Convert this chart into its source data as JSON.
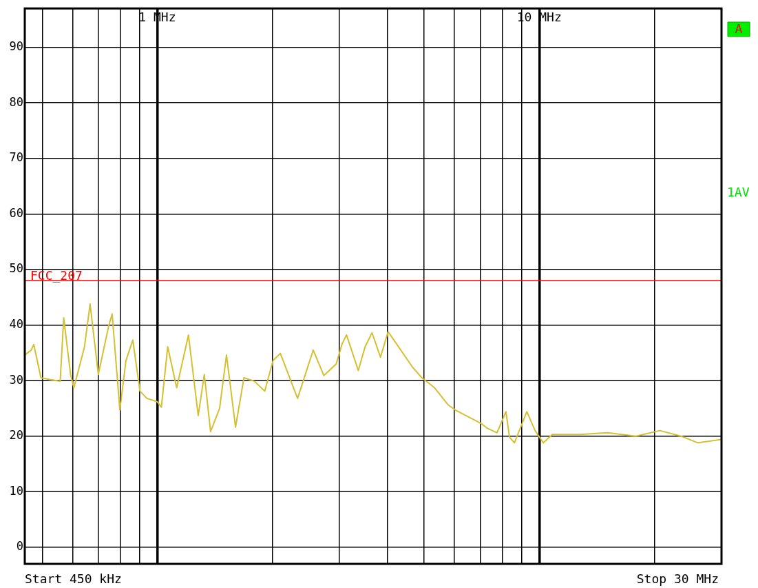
{
  "chart_data": {
    "type": "line",
    "log": "x",
    "grid": true,
    "legend": false,
    "marker": "none",
    "line_style": "solid",
    "xlim": [
      0.45,
      30
    ],
    "ylim": [
      -3,
      97
    ],
    "xticks": [
      {
        "value": 0.5,
        "label": null
      },
      {
        "value": 0.6,
        "label": null
      },
      {
        "value": 0.7,
        "label": null
      },
      {
        "value": 0.8,
        "label": null
      },
      {
        "value": 0.9,
        "label": null
      },
      {
        "value": 1,
        "label": "1 MHz"
      },
      {
        "value": 2,
        "label": null
      },
      {
        "value": 3,
        "label": null
      },
      {
        "value": 4,
        "label": null
      },
      {
        "value": 5,
        "label": null
      },
      {
        "value": 6,
        "label": null
      },
      {
        "value": 7,
        "label": null
      },
      {
        "value": 8,
        "label": null
      },
      {
        "value": 9,
        "label": null
      },
      {
        "value": 10,
        "label": "10 MHz"
      },
      {
        "value": 20,
        "label": null
      }
    ],
    "yticks": [
      0,
      10,
      20,
      30,
      40,
      50,
      60,
      70,
      80,
      90
    ],
    "ref_lines": [
      {
        "axis": "y",
        "value": 48,
        "label": "FCC_207",
        "color": "#ff0000"
      }
    ],
    "annotations": [
      "Start 450 kHz",
      "Stop 30 MHz",
      "1AV",
      "A"
    ],
    "x": [
      0.45,
      0.468,
      0.475,
      0.496,
      0.523,
      0.557,
      0.569,
      0.593,
      0.605,
      0.645,
      0.667,
      0.701,
      0.746,
      0.762,
      0.798,
      0.828,
      0.863,
      0.901,
      0.939,
      1.0,
      1.025,
      1.065,
      1.124,
      1.207,
      1.28,
      1.328,
      1.379,
      1.456,
      1.518,
      1.603,
      1.686,
      1.795,
      1.911,
      2.01,
      2.1,
      2.33,
      2.56,
      2.73,
      2.94,
      3.05,
      3.13,
      3.36,
      3.5,
      3.65,
      3.84,
      4.02,
      4.28,
      4.66,
      4.93,
      5.32,
      5.78,
      6.03,
      6.56,
      7.07,
      7.28,
      7.75,
      8.18,
      8.36,
      8.61,
      9.28,
      9.75,
      10.25,
      10.82,
      12.8,
      15.1,
      17.9,
      20.7,
      23.5,
      26.0,
      30
    ],
    "series": [
      {
        "color": "#d4c030",
        "values": [
          34.6,
          35.5,
          36.5,
          30.5,
          30.2,
          29.9,
          41.3,
          31.1,
          28.7,
          36.1,
          43.8,
          31.1,
          39.8,
          42.0,
          24.7,
          33.6,
          37.3,
          28.1,
          26.8,
          26.2,
          25.2,
          36.1,
          28.7,
          38.2,
          23.7,
          31.1,
          20.8,
          25.0,
          34.6,
          21.6,
          30.5,
          29.9,
          28.1,
          33.6,
          34.9,
          26.8,
          35.5,
          30.9,
          33.0,
          36.7,
          38.2,
          31.8,
          36.1,
          38.6,
          34.2,
          38.8,
          36.1,
          32.4,
          30.5,
          28.7,
          25.6,
          24.7,
          23.4,
          22.2,
          21.5,
          20.6,
          24.4,
          19.8,
          18.8,
          24.4,
          21.0,
          18.8,
          20.3,
          20.3,
          20.6,
          20.0,
          21.0,
          20.0,
          18.8,
          19.4
        ]
      }
    ]
  }
}
